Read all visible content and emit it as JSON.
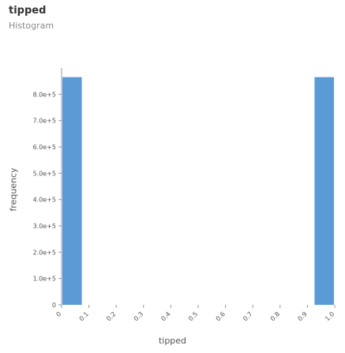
{
  "chart_data": {
    "type": "bar",
    "title": "tipped",
    "subtitle": "Histogram",
    "xlabel": "tipped",
    "ylabel": "frequency",
    "y_tick_labels": [
      "0",
      "1.0e+5",
      "2.0e+5",
      "3.0e+5",
      "4.0e+5",
      "5.0e+5",
      "6.0e+5",
      "7.0e+5",
      "8.0e+5"
    ],
    "x_tick_labels": [
      "0",
      "0.1",
      "0.2",
      "0.3",
      "0.4",
      "0.5",
      "0.6",
      "0.7",
      "0.8",
      "0.9",
      "1.0"
    ],
    "ylim": [
      0,
      900000
    ],
    "xlim": [
      0,
      1
    ],
    "bins": [
      {
        "x0": 0.0,
        "x1": 0.0769,
        "value": 865000
      },
      {
        "x0": 0.9231,
        "x1": 1.0,
        "value": 865000
      }
    ],
    "bar_color": "#5b9bd5",
    "grid": false,
    "legend": "none"
  }
}
